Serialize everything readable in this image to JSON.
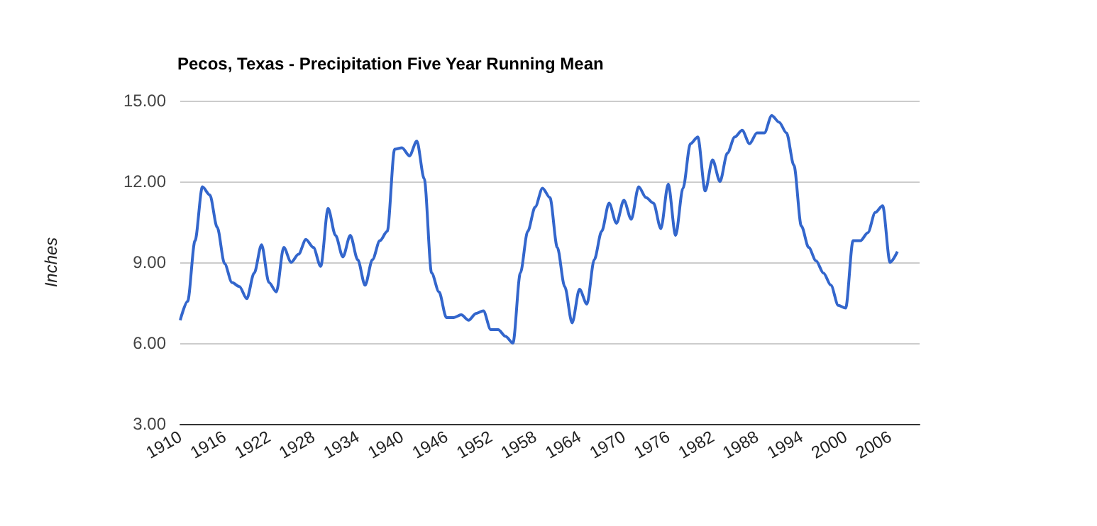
{
  "chart_data": {
    "type": "line",
    "title": "Pecos, Texas - Precipitation Five Year Running Mean",
    "ylabel": "Inches",
    "x": [
      1910,
      1911,
      1912,
      1913,
      1914,
      1915,
      1916,
      1917,
      1918,
      1919,
      1920,
      1921,
      1922,
      1923,
      1924,
      1925,
      1926,
      1927,
      1928,
      1929,
      1930,
      1931,
      1932,
      1933,
      1934,
      1935,
      1936,
      1937,
      1938,
      1939,
      1940,
      1941,
      1942,
      1943,
      1944,
      1945,
      1946,
      1947,
      1948,
      1949,
      1950,
      1951,
      1952,
      1953,
      1954,
      1955,
      1956,
      1957,
      1958,
      1959,
      1960,
      1961,
      1962,
      1963,
      1964,
      1965,
      1966,
      1967,
      1968,
      1969,
      1970,
      1971,
      1972,
      1973,
      1974,
      1975,
      1976,
      1977,
      1978,
      1979,
      1980,
      1981,
      1982,
      1983,
      1984,
      1985,
      1986,
      1987,
      1988,
      1989,
      1990,
      1991,
      1992,
      1993,
      1994,
      1995,
      1996,
      1997,
      1998,
      1999,
      2000,
      2001,
      2002,
      2003,
      2004,
      2005,
      2006,
      2007
    ],
    "series": [
      {
        "color": "#3366cc",
        "values": [
          6.85,
          7.55,
          9.8,
          11.8,
          11.5,
          10.3,
          8.95,
          8.25,
          8.1,
          7.65,
          8.6,
          9.65,
          8.25,
          7.9,
          9.55,
          9.0,
          9.3,
          9.85,
          9.55,
          8.85,
          11.0,
          10.0,
          9.2,
          10.0,
          9.1,
          8.15,
          9.1,
          9.8,
          10.15,
          13.2,
          13.25,
          12.95,
          13.5,
          12.1,
          8.6,
          7.9,
          6.95,
          6.95,
          7.05,
          6.85,
          7.1,
          7.2,
          6.5,
          6.5,
          6.25,
          6.0,
          8.6,
          10.15,
          11.05,
          11.75,
          11.4,
          9.55,
          8.1,
          6.75,
          8.0,
          7.45,
          9.1,
          10.15,
          11.2,
          10.45,
          11.3,
          10.6,
          11.8,
          11.4,
          11.2,
          10.25,
          11.9,
          10.0,
          11.75,
          13.4,
          13.65,
          11.65,
          12.8,
          12.0,
          13.05,
          13.65,
          13.9,
          13.4,
          13.8,
          13.8,
          14.45,
          14.2,
          13.8,
          12.6,
          10.35,
          9.55,
          9.05,
          8.6,
          8.15,
          7.4,
          7.3,
          9.8,
          9.8,
          10.1,
          10.85,
          11.1,
          9.0,
          9.4
        ]
      }
    ],
    "xlim": [
      1910,
      2010
    ],
    "xticks": [
      1910,
      1916,
      1922,
      1928,
      1934,
      1940,
      1946,
      1952,
      1958,
      1964,
      1970,
      1976,
      1982,
      1988,
      1994,
      2000,
      2006
    ],
    "ylim": [
      3,
      15
    ],
    "yticks": [
      {
        "value": 3,
        "label": "3.00"
      },
      {
        "value": 6,
        "label": "6.00"
      },
      {
        "value": 9,
        "label": "9.00"
      },
      {
        "value": 12,
        "label": "12.00"
      },
      {
        "value": 15,
        "label": "15.00"
      }
    ],
    "grid": "y",
    "marker": "none",
    "line_style": "solid"
  }
}
